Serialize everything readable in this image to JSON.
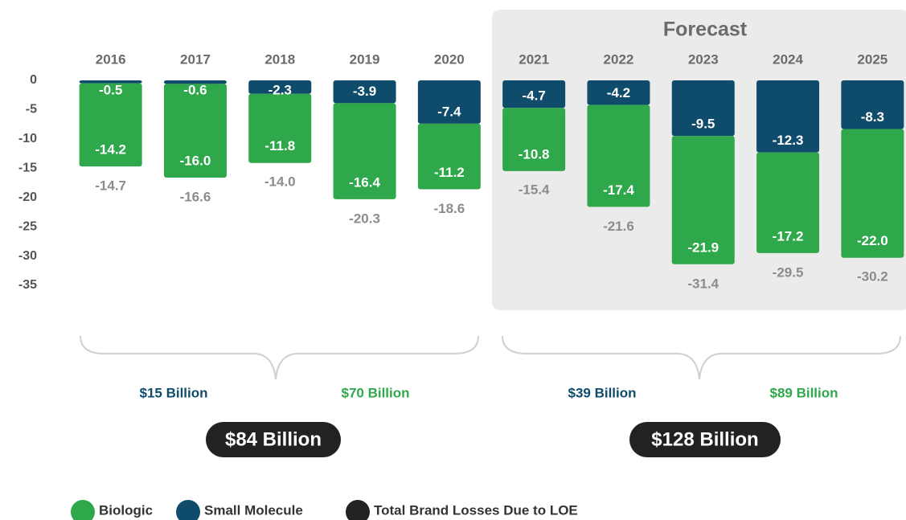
{
  "chart_data": {
    "type": "bar",
    "stacked": true,
    "categories": [
      "2016",
      "2017",
      "2018",
      "2019",
      "2020",
      "2021",
      "2022",
      "2023",
      "2024",
      "2025"
    ],
    "series": [
      {
        "name": "Biologic",
        "color": "#2ea84a",
        "values": [
          -14.2,
          -16.0,
          -11.8,
          -16.4,
          -11.2,
          -10.8,
          -17.4,
          -21.9,
          -17.2,
          -22.0
        ],
        "value_labels": [
          "-14.2",
          "-16.0",
          "-11.8",
          "-16.4",
          "-11.2",
          "-10.8",
          "-17.4",
          "-21.9",
          "-17.2",
          "-22.0"
        ]
      },
      {
        "name": "Small Molecule",
        "color": "#0f4c6b",
        "values": [
          -0.5,
          -0.6,
          -2.3,
          -3.9,
          -7.4,
          -4.7,
          -4.2,
          -9.5,
          -12.3,
          -8.3
        ],
        "value_labels": [
          "-0.5",
          "-0.6",
          "-2.3",
          "-3.9",
          "-7.4",
          "-4.7",
          "-4.2",
          "-9.5",
          "-12.3",
          "-8.3"
        ]
      }
    ],
    "totals": {
      "name": "Total Brand Losses Due to LOE",
      "color": "#222222",
      "values": [
        -14.7,
        -16.6,
        -14.0,
        -20.3,
        -18.6,
        -15.4,
        -21.6,
        -31.4,
        -29.5,
        -30.2
      ],
      "value_labels": [
        "-14.7",
        "-16.6",
        "-14.0",
        "-20.3",
        "-18.6",
        "-15.4",
        "-21.6",
        "-31.4",
        "-29.5",
        "-30.2"
      ]
    },
    "ylim": [
      -35,
      0
    ],
    "yticks": [
      0,
      -5,
      -10,
      -15,
      -20,
      -25,
      -30,
      -35
    ],
    "grid": false,
    "legend": "bottom-left",
    "annotations": {
      "forecast": "Forecast",
      "brackets": [
        {
          "small_molecule": "$15 Billion",
          "biologic": "$70 Billion",
          "total": "$84 Billion"
        },
        {
          "small_molecule": "$39 Billion",
          "biologic": "$89 Billion",
          "total": "$128 Billion"
        }
      ]
    }
  }
}
